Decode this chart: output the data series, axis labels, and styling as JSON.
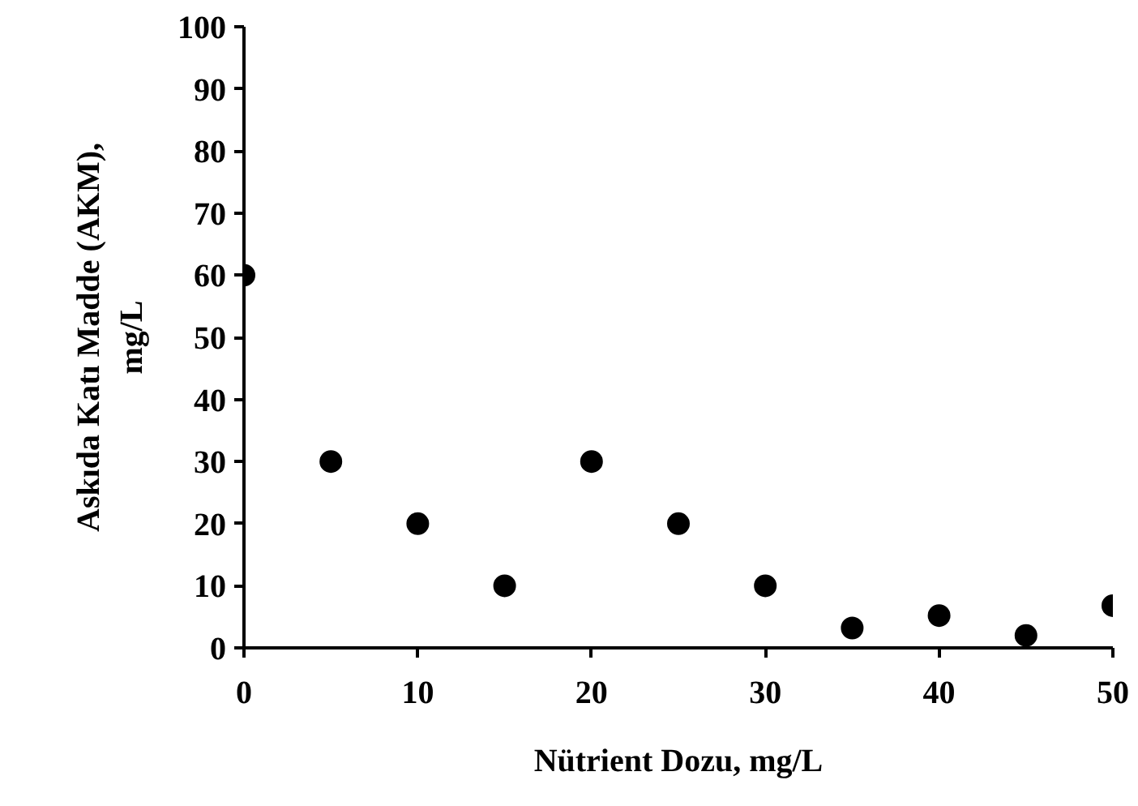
{
  "chart_data": {
    "type": "scatter",
    "xlabel": "Nütrient Dozu, mg/L",
    "ylabel": "Askıda Katı Madde (AKM),\nmg/L",
    "x": [
      0,
      5,
      10,
      15,
      20,
      25,
      30,
      35,
      40,
      45,
      50
    ],
    "series": [
      {
        "color": "#000000",
        "values": [
          60,
          30,
          20,
          10,
          30,
          20,
          10,
          3.2,
          5.2,
          2,
          6.8
        ]
      }
    ],
    "xlim": [
      0,
      50
    ],
    "ylim": [
      0,
      100
    ],
    "xticks": [
      0,
      10,
      20,
      30,
      40,
      50
    ],
    "yticks": [
      0,
      10,
      20,
      30,
      40,
      50,
      60,
      70,
      80,
      90,
      100
    ],
    "marker": "circle",
    "grid": false
  }
}
